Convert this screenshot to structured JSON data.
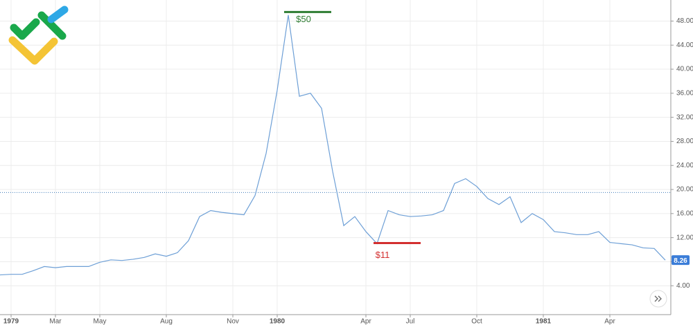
{
  "chart_data": {
    "type": "line",
    "color": "#6d9fd6",
    "grid": true,
    "categories": [
      null,
      "1979",
      null,
      null,
      null,
      "Mar",
      null,
      null,
      null,
      "May",
      null,
      null,
      null,
      null,
      null,
      "Aug",
      null,
      null,
      null,
      null,
      null,
      "Nov",
      null,
      null,
      null,
      "1980",
      null,
      null,
      null,
      null,
      null,
      null,
      null,
      "Apr",
      null,
      null,
      null,
      "Jul",
      null,
      null,
      null,
      null,
      null,
      "Oct",
      null,
      null,
      null,
      null,
      null,
      "1981",
      null,
      null,
      null,
      null,
      null,
      "Apr",
      null,
      null,
      null,
      null,
      null
    ],
    "values": [
      5.8,
      5.9,
      5.9,
      6.5,
      7.2,
      7.0,
      7.2,
      7.2,
      7.2,
      7.9,
      8.3,
      8.2,
      8.4,
      8.7,
      9.3,
      8.9,
      9.5,
      11.5,
      15.5,
      16.5,
      16.2,
      16.0,
      15.8,
      19.0,
      26.0,
      36.5,
      49.0,
      35.5,
      36.0,
      33.5,
      23.0,
      14.0,
      15.5,
      13.0,
      11.0,
      16.5,
      15.8,
      15.5,
      15.6,
      15.8,
      16.5,
      21.0,
      21.8,
      20.5,
      18.5,
      17.5,
      18.8,
      14.5,
      16.0,
      15.0,
      13.0,
      12.8,
      12.5,
      12.5,
      13.0,
      11.2,
      11.0,
      10.8,
      10.3,
      10.2,
      8.26
    ],
    "ylim": [
      -0.8,
      51.5
    ],
    "yticks": [
      {
        "value": 4,
        "label": "4.00"
      },
      {
        "value": 8,
        "label": "8.00"
      },
      {
        "value": 12,
        "label": "12.00"
      },
      {
        "value": 16,
        "label": "16.00"
      },
      {
        "value": 20,
        "label": "20.00"
      },
      {
        "value": 24,
        "label": "24.00"
      },
      {
        "value": 28,
        "label": "28.00"
      },
      {
        "value": 32,
        "label": "32.00"
      },
      {
        "value": 36,
        "label": "36.00"
      },
      {
        "value": 40,
        "label": "40.00"
      },
      {
        "value": 44,
        "label": "44.00"
      },
      {
        "value": 48,
        "label": "48.00"
      }
    ],
    "reference_line": 19.5,
    "annotations": [
      {
        "label": "$50",
        "value": 49.5,
        "color": "#2e7d32"
      },
      {
        "label": "$11",
        "value": 11.1,
        "color": "#d32f2f"
      }
    ]
  }
}
